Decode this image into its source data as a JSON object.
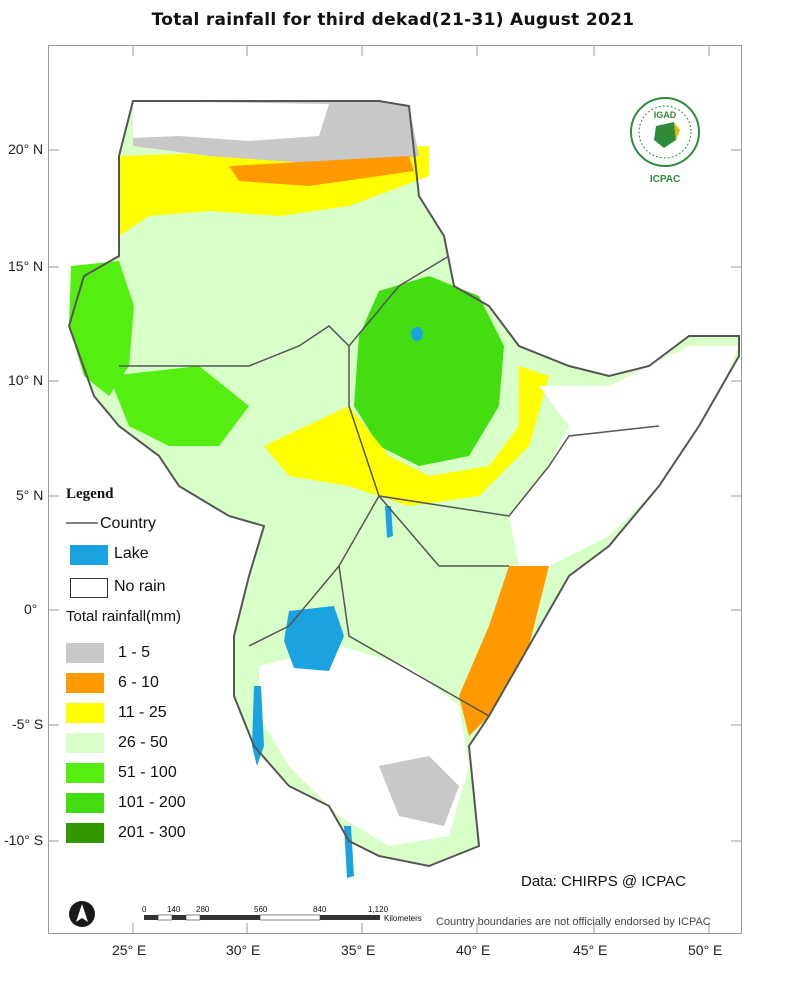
{
  "title": "Total rainfall for  third  dekad(21-31)  August 2021",
  "map": {
    "graticule": {
      "lat_labels": [
        "20° N",
        "15° N",
        "10° N",
        "5° N",
        "0°",
        "-5° S",
        "-10° S"
      ],
      "lon_labels": [
        "25° E",
        "30° E",
        "35° E",
        "40° E",
        "45° E",
        "50° E"
      ]
    },
    "colors": {
      "lake": "#1aa3e0",
      "no_rain": "#ffffff",
      "r1_5": "#c8c8c8",
      "r6_10": "#ff9900",
      "r11_25": "#ffff00",
      "r26_50": "#d8ffc8",
      "r51_100": "#55ee11",
      "r101_200": "#44dd11",
      "r201_300": "#339900",
      "border": "#555555"
    }
  },
  "legend": {
    "title": "Legend",
    "country": "Country",
    "lake": "Lake",
    "no_rain": "No rain",
    "total_rainfall": "Total rainfall(mm)",
    "classes": [
      "1 - 5",
      "6 - 10",
      "11 - 25",
      "26 - 50",
      "51 - 100",
      "101 - 200",
      "201 - 300"
    ]
  },
  "logo": {
    "name": "IGAD",
    "org": "ICPAC"
  },
  "scale": {
    "ticks": [
      "0",
      "140",
      "280",
      "560",
      "840",
      "1,120"
    ],
    "unit": "Kilometers"
  },
  "credit": "Data: CHIRPS @ ICPAC",
  "disclaimer": "Country boundaries are not officially endorsed by ICPAC"
}
